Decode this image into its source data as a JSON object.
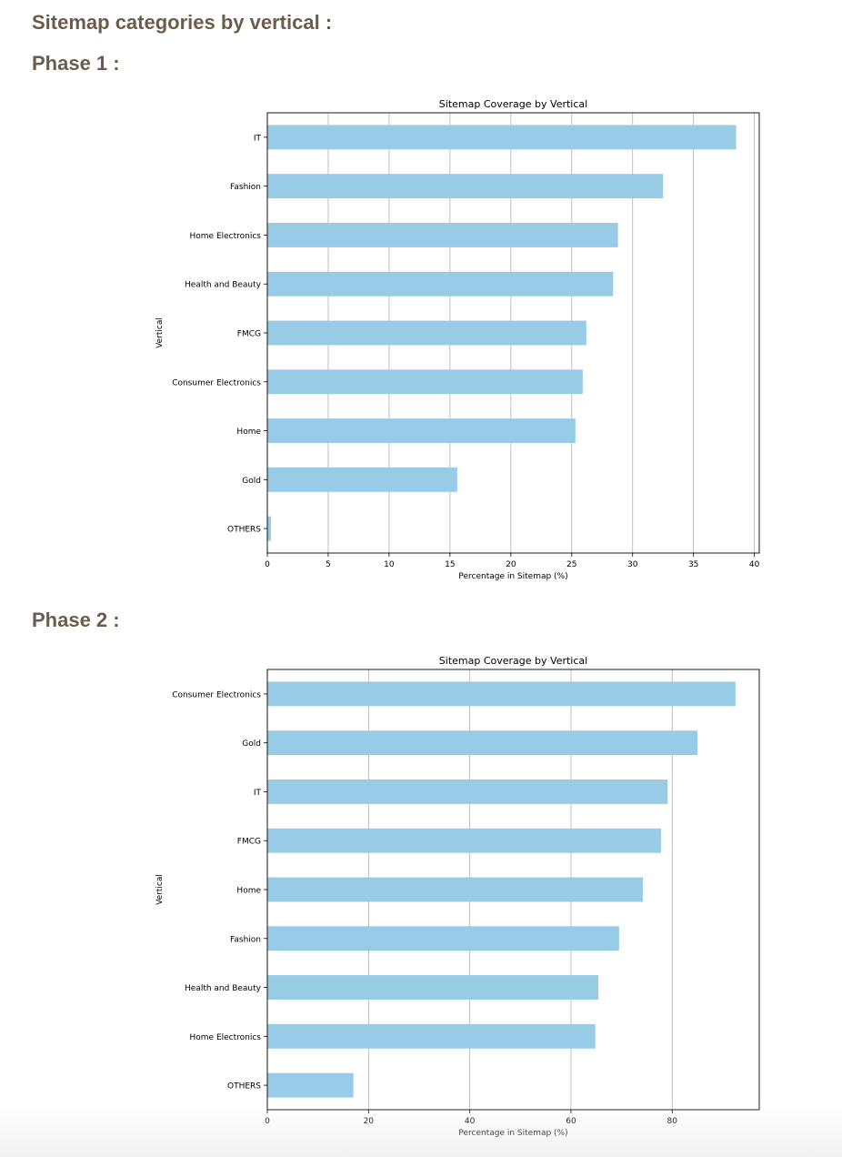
{
  "headings": {
    "main": "Sitemap categories by vertical :",
    "phase1": "Phase 1 :",
    "phase2": "Phase 2 :"
  },
  "colors": {
    "bar": "#97cbe6",
    "heading": "#6b5d4c",
    "grid": "#b0b0b0"
  },
  "chart_data": [
    {
      "type": "bar",
      "orientation": "horizontal",
      "title": "Sitemap Coverage by Vertical",
      "xlabel": "Percentage in Sitemap (%)",
      "ylabel": "Vertical",
      "categories": [
        "IT",
        "Fashion",
        "Home Electronics",
        "Health and Beauty",
        "FMCG",
        "Consumer Electronics",
        "Home",
        "Gold",
        "OTHERS"
      ],
      "values": [
        38.5,
        32.5,
        28.8,
        28.4,
        26.2,
        25.9,
        25.3,
        15.6,
        0.3
      ],
      "xlim": [
        0,
        40.4
      ],
      "xticks": [
        0,
        5,
        10,
        15,
        20,
        25,
        30,
        35,
        40
      ],
      "grid": "x"
    },
    {
      "type": "bar",
      "orientation": "horizontal",
      "title": "Sitemap Coverage by Vertical",
      "xlabel": "Percentage in Sitemap (%)",
      "ylabel": "Vertical",
      "categories": [
        "Consumer Electronics",
        "Gold",
        "IT",
        "FMCG",
        "Home",
        "Fashion",
        "Health and Beauty",
        "Home Electronics",
        "OTHERS"
      ],
      "values": [
        92.5,
        85.0,
        79.1,
        77.8,
        74.2,
        69.5,
        65.4,
        64.8,
        17.0
      ],
      "xlim": [
        0,
        97.2
      ],
      "xticks": [
        0,
        20,
        40,
        60,
        80
      ],
      "grid": "x"
    }
  ]
}
